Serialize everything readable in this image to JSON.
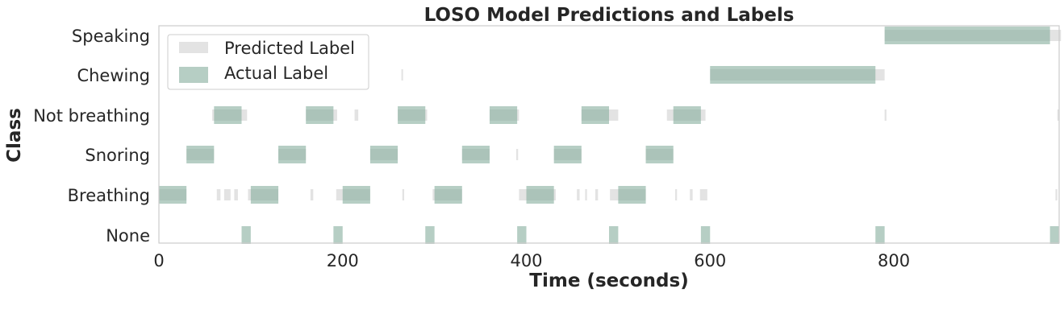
{
  "chart_data": {
    "type": "event-timeline",
    "title": "LOSO Model Predictions and Labels",
    "xlabel": "Time (seconds)",
    "ylabel": "Class",
    "xlim": [
      0,
      980
    ],
    "xticks": [
      0,
      200,
      400,
      600,
      800
    ],
    "categories": [
      "None",
      "Breathing",
      "Snoring",
      "Not breathing",
      "Chewing",
      "Speaking"
    ],
    "grid": false,
    "legend_position": "upper-left",
    "series": [
      {
        "name": "Predicted Label",
        "color": "#b0b0b0",
        "segments": [
          {
            "class": "Speaking",
            "start": 790,
            "end": 982
          },
          {
            "class": "Chewing",
            "start": 600,
            "end": 790
          },
          {
            "class": "Chewing",
            "start": 264,
            "end": 265
          },
          {
            "class": "Not breathing",
            "start": 58,
            "end": 96
          },
          {
            "class": "Not breathing",
            "start": 160,
            "end": 194
          },
          {
            "class": "Not breathing",
            "start": 213,
            "end": 217
          },
          {
            "class": "Not breathing",
            "start": 260,
            "end": 292
          },
          {
            "class": "Not breathing",
            "start": 360,
            "end": 392
          },
          {
            "class": "Not breathing",
            "start": 460,
            "end": 500
          },
          {
            "class": "Not breathing",
            "start": 553,
            "end": 595
          },
          {
            "class": "Not breathing",
            "start": 790,
            "end": 792
          },
          {
            "class": "Not breathing",
            "start": 978,
            "end": 980
          },
          {
            "class": "Snoring",
            "start": 30,
            "end": 60
          },
          {
            "class": "Snoring",
            "start": 130,
            "end": 160
          },
          {
            "class": "Snoring",
            "start": 230,
            "end": 260
          },
          {
            "class": "Snoring",
            "start": 330,
            "end": 360
          },
          {
            "class": "Snoring",
            "start": 389,
            "end": 391
          },
          {
            "class": "Snoring",
            "start": 430,
            "end": 460
          },
          {
            "class": "Snoring",
            "start": 530,
            "end": 560
          },
          {
            "class": "Breathing",
            "start": 0,
            "end": 30
          },
          {
            "class": "Breathing",
            "start": 63,
            "end": 67
          },
          {
            "class": "Breathing",
            "start": 71,
            "end": 78
          },
          {
            "class": "Breathing",
            "start": 82,
            "end": 86
          },
          {
            "class": "Breathing",
            "start": 97,
            "end": 130
          },
          {
            "class": "Breathing",
            "start": 165,
            "end": 168
          },
          {
            "class": "Breathing",
            "start": 193,
            "end": 230
          },
          {
            "class": "Breathing",
            "start": 265,
            "end": 267
          },
          {
            "class": "Breathing",
            "start": 298,
            "end": 330
          },
          {
            "class": "Breathing",
            "start": 392,
            "end": 432
          },
          {
            "class": "Breathing",
            "start": 455,
            "end": 458
          },
          {
            "class": "Breathing",
            "start": 464,
            "end": 466
          },
          {
            "class": "Breathing",
            "start": 475,
            "end": 478
          },
          {
            "class": "Breathing",
            "start": 491,
            "end": 530
          },
          {
            "class": "Breathing",
            "start": 562,
            "end": 564
          },
          {
            "class": "Breathing",
            "start": 578,
            "end": 581
          },
          {
            "class": "Breathing",
            "start": 589,
            "end": 597
          },
          {
            "class": "Breathing",
            "start": 976,
            "end": 978
          }
        ]
      },
      {
        "name": "Actual Label",
        "color": "#86ae9c",
        "segments": [
          {
            "class": "Speaking",
            "start": 790,
            "end": 970
          },
          {
            "class": "Chewing",
            "start": 600,
            "end": 780
          },
          {
            "class": "Not breathing",
            "start": 60,
            "end": 90
          },
          {
            "class": "Not breathing",
            "start": 160,
            "end": 190
          },
          {
            "class": "Not breathing",
            "start": 260,
            "end": 290
          },
          {
            "class": "Not breathing",
            "start": 360,
            "end": 390
          },
          {
            "class": "Not breathing",
            "start": 460,
            "end": 490
          },
          {
            "class": "Not breathing",
            "start": 560,
            "end": 590
          },
          {
            "class": "Snoring",
            "start": 30,
            "end": 60
          },
          {
            "class": "Snoring",
            "start": 130,
            "end": 160
          },
          {
            "class": "Snoring",
            "start": 230,
            "end": 260
          },
          {
            "class": "Snoring",
            "start": 330,
            "end": 360
          },
          {
            "class": "Snoring",
            "start": 430,
            "end": 460
          },
          {
            "class": "Snoring",
            "start": 530,
            "end": 560
          },
          {
            "class": "Breathing",
            "start": 0,
            "end": 30
          },
          {
            "class": "Breathing",
            "start": 100,
            "end": 130
          },
          {
            "class": "Breathing",
            "start": 200,
            "end": 230
          },
          {
            "class": "Breathing",
            "start": 300,
            "end": 330
          },
          {
            "class": "Breathing",
            "start": 400,
            "end": 430
          },
          {
            "class": "Breathing",
            "start": 500,
            "end": 530
          },
          {
            "class": "None",
            "start": 90,
            "end": 100
          },
          {
            "class": "None",
            "start": 190,
            "end": 200
          },
          {
            "class": "None",
            "start": 290,
            "end": 300
          },
          {
            "class": "None",
            "start": 390,
            "end": 400
          },
          {
            "class": "None",
            "start": 490,
            "end": 500
          },
          {
            "class": "None",
            "start": 590,
            "end": 600
          },
          {
            "class": "None",
            "start": 780,
            "end": 790
          },
          {
            "class": "None",
            "start": 970,
            "end": 980
          }
        ]
      }
    ]
  }
}
